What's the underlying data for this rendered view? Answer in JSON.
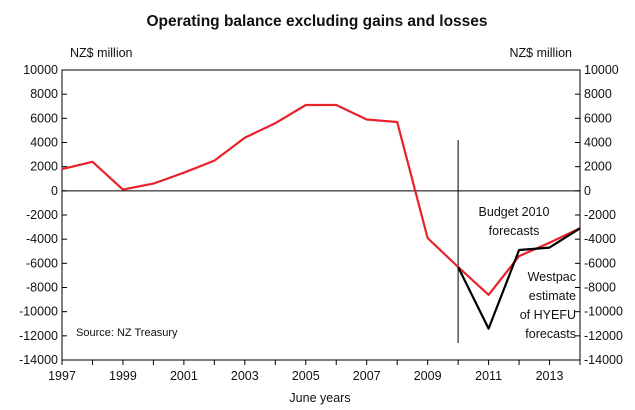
{
  "chart_data": {
    "type": "line",
    "title": "Operating balance excluding gains and losses",
    "xlabel": "June years",
    "ylabel_left": "NZ$ million",
    "ylabel_right": "NZ$ million",
    "source": "Source: NZ Treasury",
    "xlim": [
      1997,
      2014
    ],
    "ylim": [
      -14000,
      10000
    ],
    "x_ticks": [
      1997,
      1999,
      2001,
      2003,
      2005,
      2007,
      2009,
      2011,
      2013
    ],
    "y_ticks": [
      10000,
      8000,
      6000,
      4000,
      2000,
      0,
      -2000,
      -4000,
      -6000,
      -8000,
      -10000,
      -12000,
      -14000
    ],
    "forecast_divider_x": 2010,
    "annotations": [
      {
        "lines": [
          "Budget 2010",
          "forecasts"
        ]
      },
      {
        "lines": [
          "Westpac",
          "estimate",
          "of HYEFU",
          "forecasts"
        ]
      }
    ],
    "series": [
      {
        "color": "#e8222b",
        "points": [
          [
            1997,
            1800
          ],
          [
            1998,
            2400
          ],
          [
            1999,
            100
          ],
          [
            2000,
            600
          ],
          [
            2001,
            1500
          ],
          [
            2002,
            2500
          ],
          [
            2003,
            4400
          ],
          [
            2004,
            5600
          ],
          [
            2005,
            7100
          ],
          [
            2006,
            7100
          ],
          [
            2007,
            5900
          ],
          [
            2008,
            5700
          ],
          [
            2009,
            -3900
          ],
          [
            2010,
            -6300
          ],
          [
            2011,
            -8600
          ],
          [
            2012,
            -5400
          ],
          [
            2013,
            -4300
          ],
          [
            2014,
            -3100
          ]
        ]
      },
      {
        "color": "#000000",
        "points": [
          [
            2010,
            -6300
          ],
          [
            2011,
            -11400
          ],
          [
            2012,
            -4900
          ],
          [
            2013,
            -4700
          ],
          [
            2014,
            -3100
          ]
        ]
      }
    ]
  }
}
